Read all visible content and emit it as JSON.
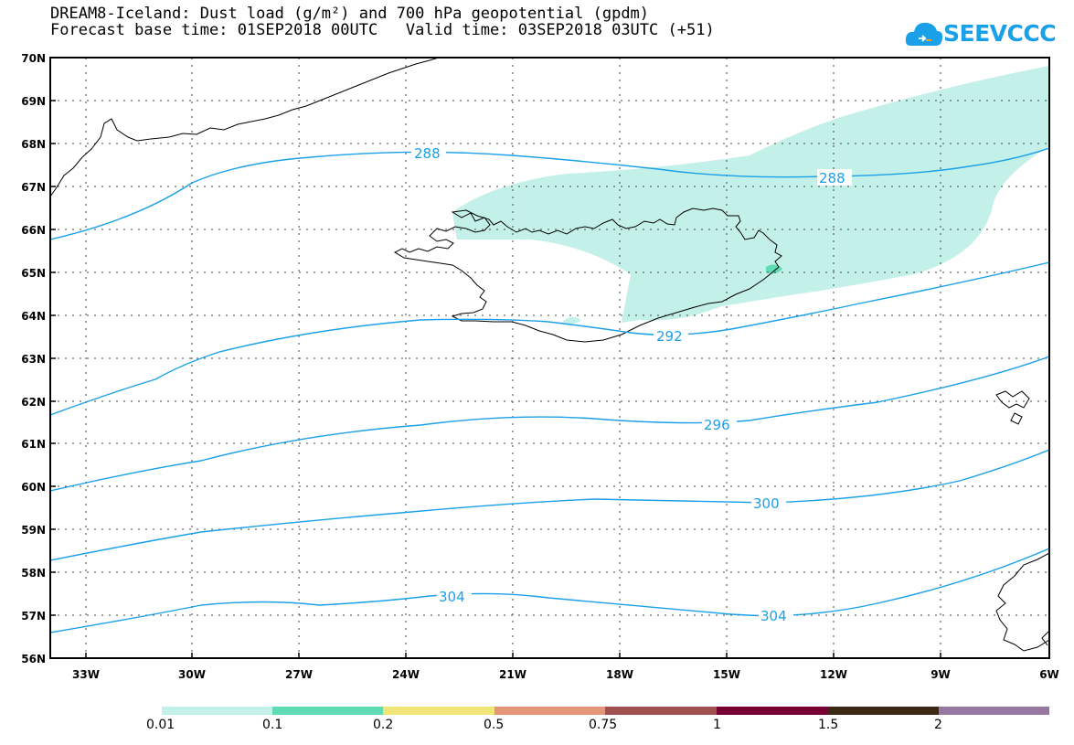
{
  "header": {
    "title_line1": "DREAM8-Iceland: Dust load (g/m²) and 700 hPa geopotential (gpdm)",
    "title_line2": "Forecast base time: 01SEP2018 00UTC   Valid time: 03SEP2018 03UTC (+51)",
    "logo_text": "SEEVCCC",
    "logo_color": "#1aa0e8"
  },
  "map": {
    "lat_labels": [
      "70N",
      "69N",
      "68N",
      "67N",
      "66N",
      "65N",
      "64N",
      "63N",
      "62N",
      "61N",
      "60N",
      "59N",
      "58N",
      "57N",
      "56N"
    ],
    "lon_labels": [
      "33W",
      "30W",
      "27W",
      "24W",
      "21W",
      "18W",
      "15W",
      "12W",
      "9W",
      "6W"
    ],
    "lat_range": [
      56,
      70
    ],
    "lon_range": [
      -34.5,
      -6
    ],
    "contour_color": "#1aa0e8",
    "contour_labels": [
      "288",
      "288",
      "292",
      "296",
      "300",
      "304",
      "304"
    ],
    "dust_color": "#c3f0e8"
  },
  "colorbar": {
    "colors": [
      "#c3f0e8",
      "#5fdcb4",
      "#f0e678",
      "#e69678",
      "#a05050",
      "#780032",
      "#3c2814",
      "#9678a0"
    ],
    "labels": [
      "0.01",
      "0.1",
      "0.2",
      "0.5",
      "0.75",
      "1",
      "1.5",
      "2"
    ]
  }
}
